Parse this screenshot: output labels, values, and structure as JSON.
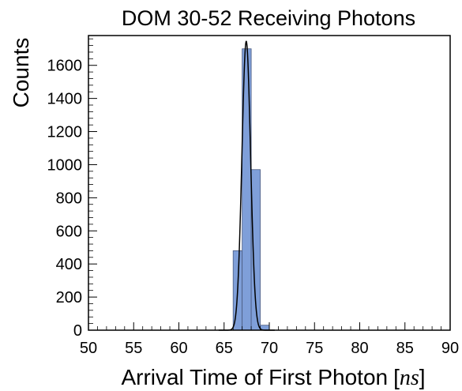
{
  "chart_data": {
    "type": "bar",
    "title": "DOM 30-52 Receiving Photons",
    "xlabel": "Arrival Time of First Photon",
    "xlabel_bracket_open": "[",
    "xlabel_unit": "ns",
    "xlabel_bracket_close": "]",
    "ylabel": "Counts",
    "xlim": [
      50,
      90
    ],
    "ylim": [
      0,
      1780
    ],
    "x_ticks": [
      50,
      55,
      60,
      65,
      70,
      75,
      80,
      85,
      90
    ],
    "y_ticks": [
      0,
      200,
      400,
      600,
      800,
      1000,
      1200,
      1400,
      1600
    ],
    "grid": false,
    "bin_edges": [
      66,
      67,
      68,
      69,
      70
    ],
    "values": [
      480,
      1700,
      970,
      30
    ],
    "fit": {
      "type": "gaussian",
      "mean": 67.45,
      "sigma": 0.48,
      "amplitude": 1745
    },
    "colors": {
      "bars": "#7f9fd9",
      "bar_edge": "#4a5a80",
      "fit_line": "#000000",
      "axes": "#000000"
    }
  }
}
